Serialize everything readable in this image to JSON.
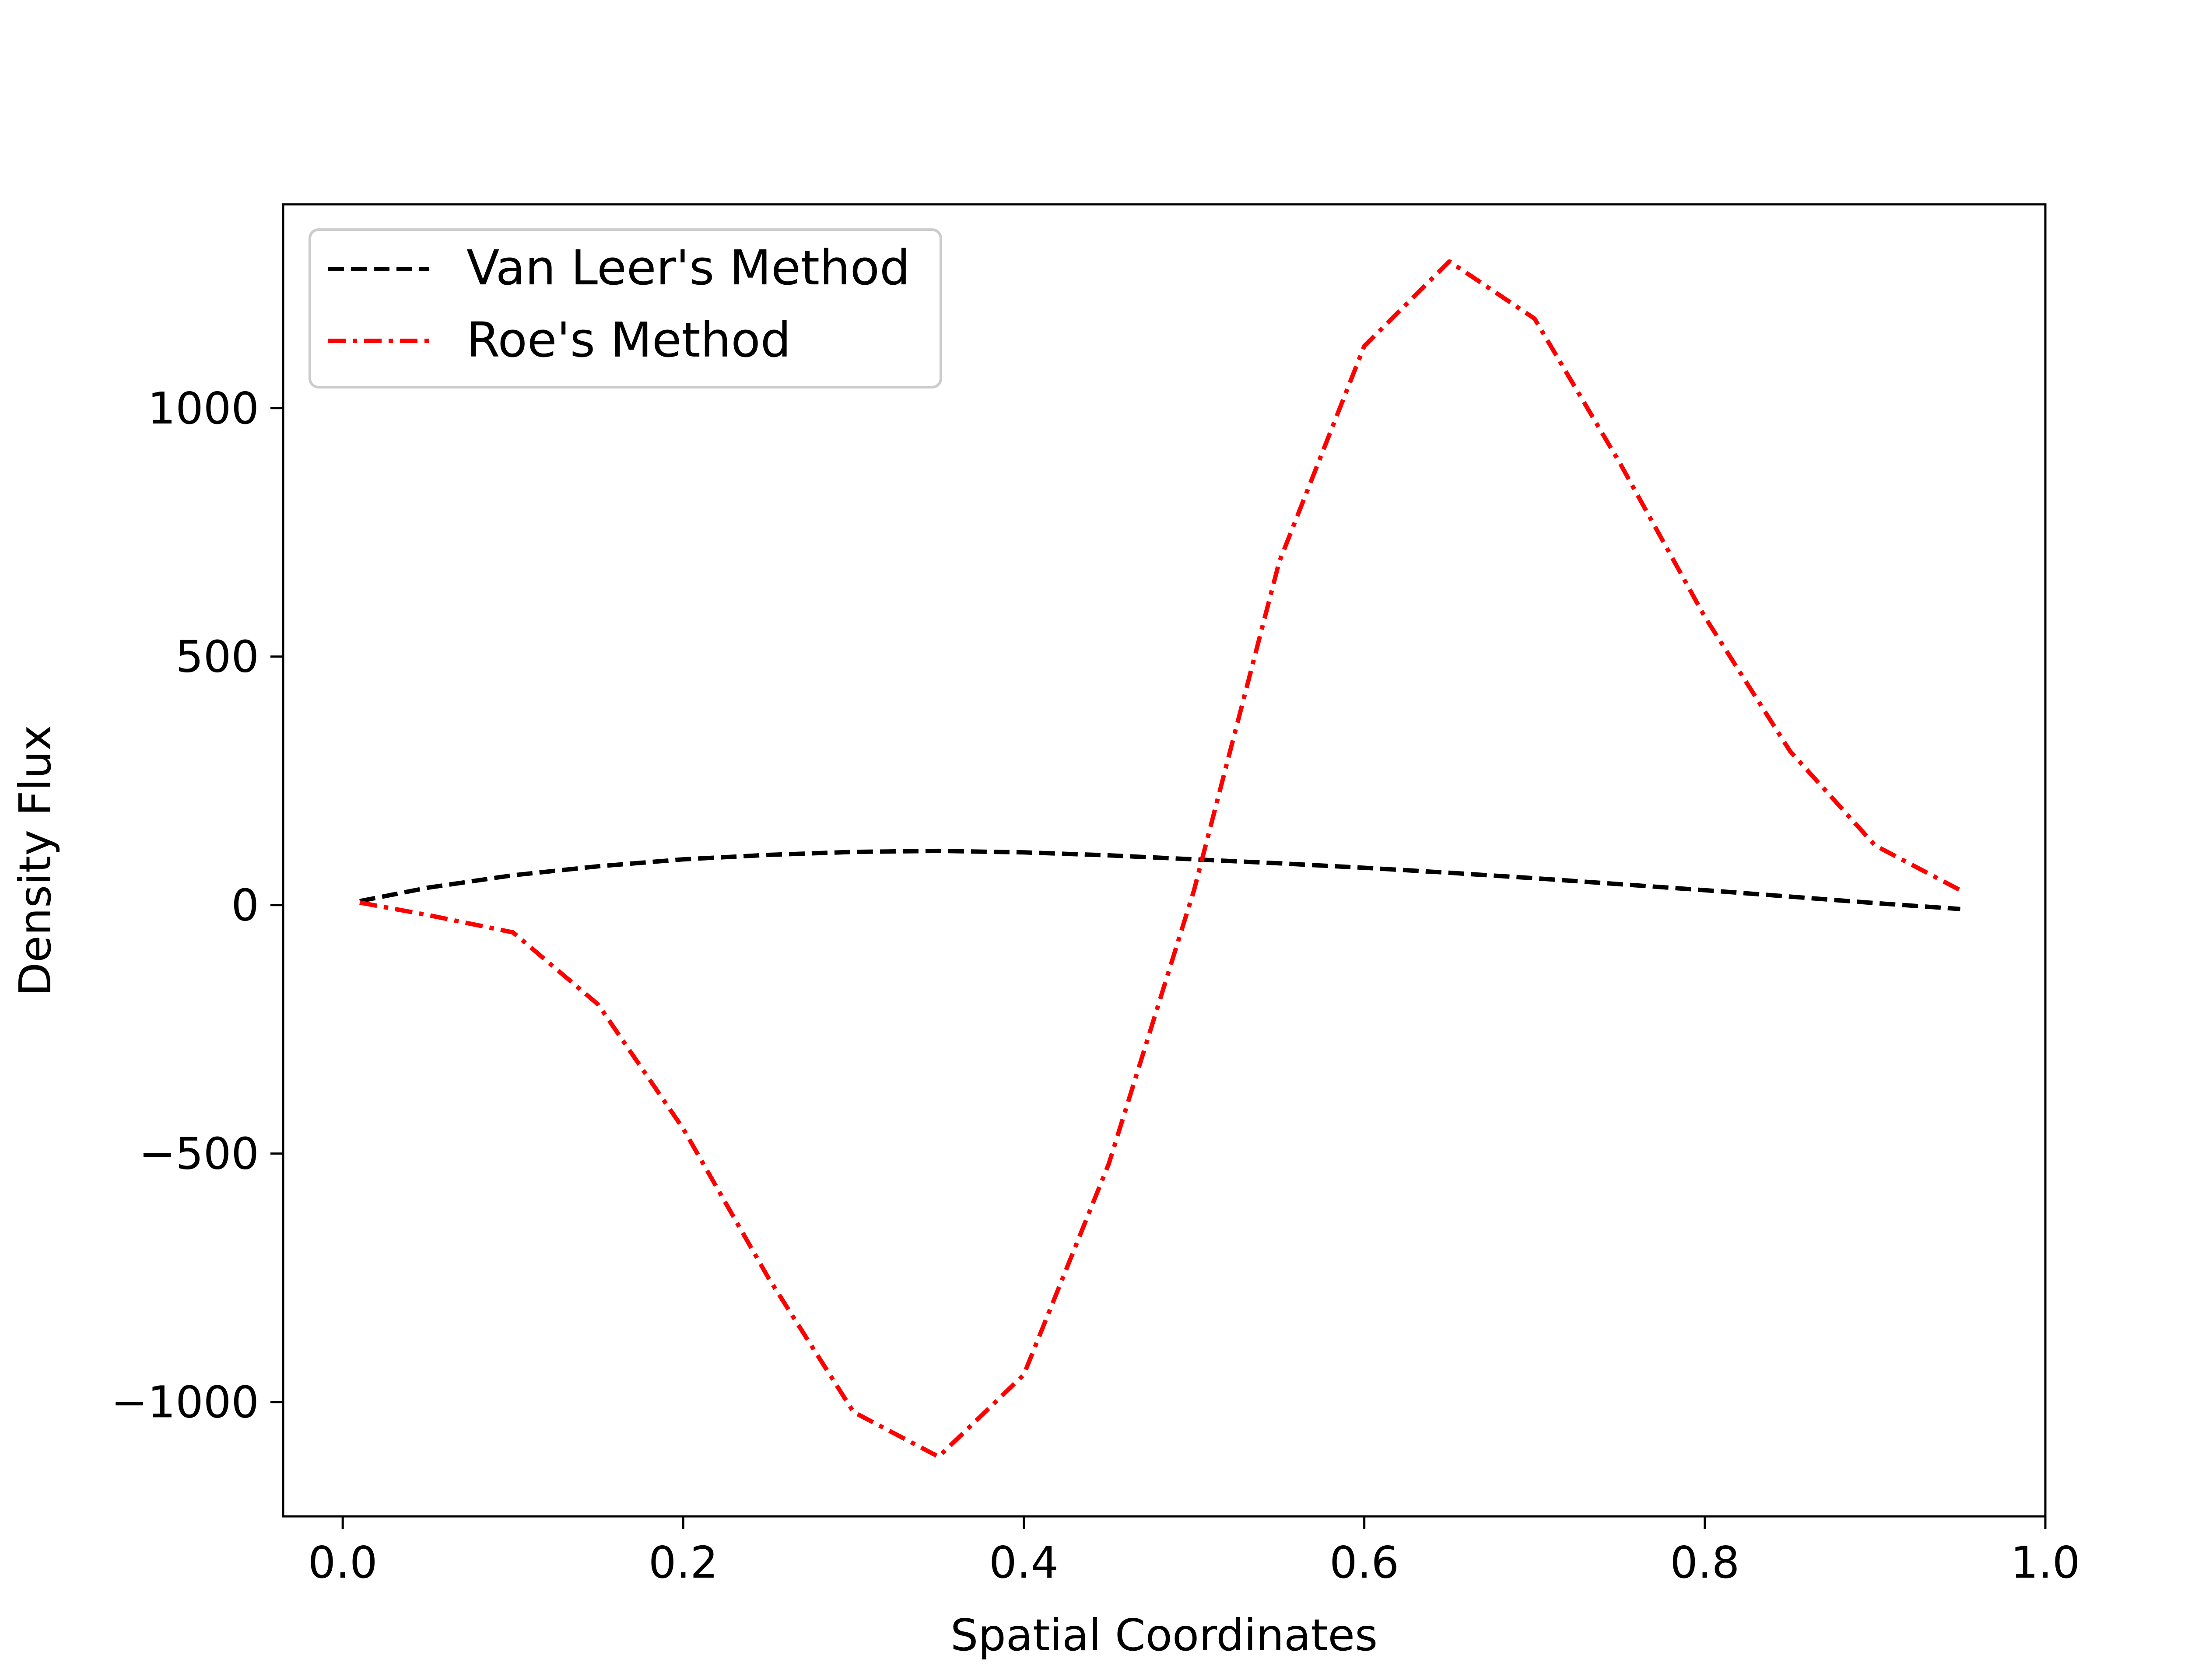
{
  "chart_data": {
    "type": "line",
    "title": "",
    "xlabel": "Spatial Coordinates",
    "ylabel": "Density Flux",
    "xlim": [
      -0.035,
      1.0
    ],
    "ylim": [
      -1230,
      1410
    ],
    "xticks": [
      0.0,
      0.2,
      0.4,
      0.6,
      0.8,
      1.0
    ],
    "xtick_labels": [
      "0.0",
      "0.2",
      "0.4",
      "0.6",
      "0.8",
      "1.0"
    ],
    "yticks": [
      -1000,
      -500,
      0,
      500,
      1000
    ],
    "ytick_labels": [
      "−1000",
      "−500",
      "0",
      "500",
      "1000"
    ],
    "grid": false,
    "legend_position": "upper-left",
    "series": [
      {
        "name": "Van Leer's Method",
        "color": "#000000",
        "style": "dashed",
        "x": [
          0.01,
          0.05,
          0.1,
          0.15,
          0.2,
          0.25,
          0.3,
          0.35,
          0.4,
          0.45,
          0.5,
          0.55,
          0.6,
          0.65,
          0.7,
          0.75,
          0.8,
          0.85,
          0.9,
          0.95
        ],
        "y": [
          8,
          35,
          60,
          78,
          92,
          101,
          107,
          109,
          106,
          100,
          92,
          84,
          75,
          65,
          54,
          42,
          30,
          17,
          4,
          -8
        ]
      },
      {
        "name": "Roe's Method",
        "color": "#ff0000",
        "style": "dashdot",
        "x": [
          0.01,
          0.05,
          0.1,
          0.15,
          0.2,
          0.25,
          0.3,
          0.35,
          0.4,
          0.45,
          0.5,
          0.55,
          0.6,
          0.65,
          0.7,
          0.75,
          0.8,
          0.85,
          0.9,
          0.95
        ],
        "y": [
          5,
          -20,
          -55,
          -200,
          -450,
          -750,
          -1020,
          -1110,
          -945,
          -520,
          30,
          690,
          1125,
          1295,
          1180,
          890,
          580,
          310,
          120,
          30
        ]
      }
    ]
  }
}
